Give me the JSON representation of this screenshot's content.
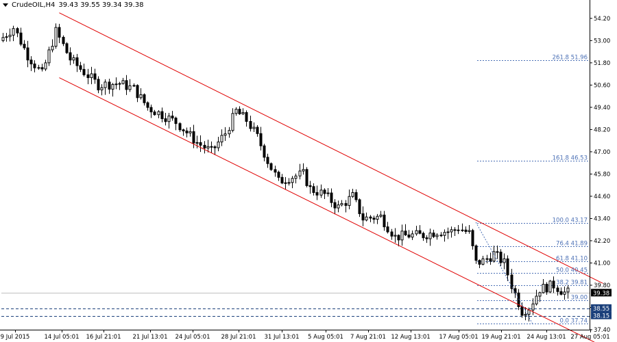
{
  "header": {
    "symbol": "CrudeOIL,H4",
    "ohlc": "39.43 39.55 39.34 39.38"
  },
  "chart_data": {
    "type": "candlestick",
    "price_range": [
      37.4,
      54.6
    ],
    "y_ticks": [
      "54.20",
      "53.00",
      "51.80",
      "50.60",
      "49.40",
      "48.20",
      "47.00",
      "45.80",
      "44.60",
      "43.40",
      "42.20",
      "41.00",
      "39.80",
      "38.60",
      "37.40"
    ],
    "x_ticks": [
      "9 Jul 2015",
      "14 Jul 05:01",
      "16 Jul 21:01",
      "21 Jul 13:01",
      "24 Jul 05:01",
      "28 Jul 21:01",
      "31 Jul 13:01",
      "5 Aug 05:01",
      "7 Aug 21:01",
      "12 Aug 13:01",
      "17 Aug 05:01",
      "19 Aug 21:01",
      "24 Aug 13:01",
      "27 Aug 05:01"
    ],
    "current_price": {
      "value": 39.38,
      "label": "39.38"
    },
    "levels": [
      {
        "value": 38.55,
        "label": "38.55"
      },
      {
        "value": 38.15,
        "label": "38.15"
      }
    ],
    "fibonacci": [
      {
        "ratio": "261.8",
        "value": 51.96,
        "label": "261.8 51.96"
      },
      {
        "ratio": "161.8",
        "value": 46.53,
        "label": "161.8 46.53"
      },
      {
        "ratio": "100.0",
        "value": 43.17,
        "label": "100.0 43.17"
      },
      {
        "ratio": "76.4",
        "value": 41.89,
        "label": "76.4 41.89"
      },
      {
        "ratio": "61.8",
        "value": 41.1,
        "label": "61.8 41.10"
      },
      {
        "ratio": "50.0",
        "value": 40.45,
        "label": "50.0 40.45"
      },
      {
        "ratio": "38.2",
        "value": 39.81,
        "label": "38.2 39.81"
      },
      {
        "ratio": "23.6",
        "value": 39.0,
        "label": "39.00"
      },
      {
        "ratio": "0.0",
        "value": 37.74,
        "label": "0.0 37.74"
      }
    ],
    "channel": {
      "upper": {
        "from": {
          "bar": 16,
          "price": 54.5
        },
        "to": {
          "bar": 170,
          "price": 39.9
        }
      },
      "lower": {
        "from": {
          "bar": 16,
          "price": 51.0
        },
        "to": {
          "bar": 170,
          "price": 36.5
        }
      }
    },
    "trend": {
      "from": {
        "bar": 134,
        "price": 43.2
      },
      "to": {
        "bar": 150,
        "price": 37.74
      }
    },
    "colors": {
      "bull_candle": "#ffffff",
      "bear_candle": "#000000",
      "wick": "#000000",
      "channel": "#e00000",
      "fib_line": "#4a6fb5",
      "fib_text": "#4a6fb5",
      "level_line": "#1a3f7a",
      "level_label_bg": "#1a3f7a",
      "current_label_bg": "#000000"
    },
    "anchors": [
      [
        0,
        53.0
      ],
      [
        4,
        53.7
      ],
      [
        8,
        52.2
      ],
      [
        12,
        51.2
      ],
      [
        16,
        53.5
      ],
      [
        20,
        52.0
      ],
      [
        24,
        51.3
      ],
      [
        28,
        50.6
      ],
      [
        34,
        50.7
      ],
      [
        38,
        50.4
      ],
      [
        42,
        49.4
      ],
      [
        46,
        49.0
      ],
      [
        50,
        48.6
      ],
      [
        56,
        47.5
      ],
      [
        60,
        47.0
      ],
      [
        62,
        47.5
      ],
      [
        64,
        48.0
      ],
      [
        67,
        49.2
      ],
      [
        70,
        48.7
      ],
      [
        73,
        47.8
      ],
      [
        76,
        46.5
      ],
      [
        79,
        45.4
      ],
      [
        82,
        45.6
      ],
      [
        86,
        45.8
      ],
      [
        88,
        45.0
      ],
      [
        92,
        44.7
      ],
      [
        96,
        44.0
      ],
      [
        100,
        44.6
      ],
      [
        103,
        43.4
      ],
      [
        108,
        43.5
      ],
      [
        112,
        42.4
      ],
      [
        116,
        42.5
      ],
      [
        120,
        42.5
      ],
      [
        124,
        42.7
      ],
      [
        128,
        42.7
      ],
      [
        130,
        42.9
      ],
      [
        133,
        42.6
      ],
      [
        135,
        41.0
      ],
      [
        137,
        41.1
      ],
      [
        140,
        41.5
      ],
      [
        143,
        41.0
      ],
      [
        145,
        39.8
      ],
      [
        148,
        38.4
      ],
      [
        150,
        38.6
      ],
      [
        153,
        39.6
      ],
      [
        157,
        39.8
      ],
      [
        160,
        39.4
      ]
    ],
    "bar_count": 161
  }
}
